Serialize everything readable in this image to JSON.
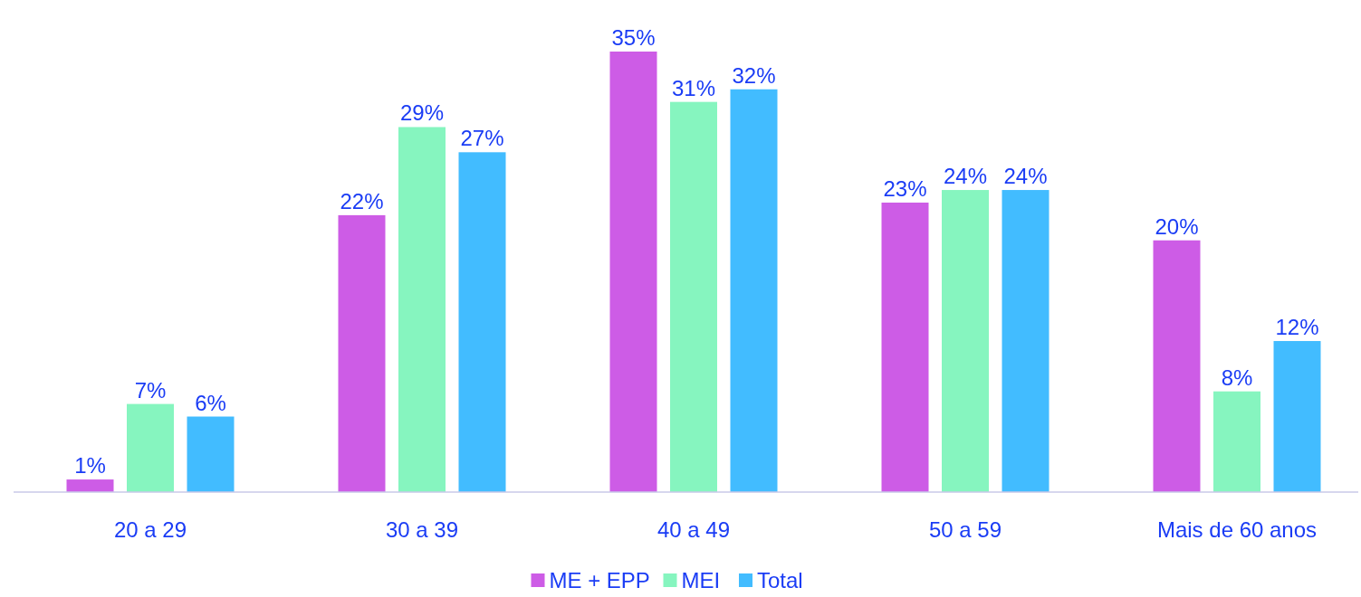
{
  "chart_data": {
    "type": "bar",
    "categories": [
      "20 a 29",
      "30 a 39",
      "40 a 49",
      "50 a 59",
      "Mais de 60 anos"
    ],
    "series": [
      {
        "name": "ME + EPP",
        "color": "#cd5ce6",
        "values": [
          1,
          22,
          35,
          23,
          20
        ],
        "value_labels": [
          "1%",
          "22%",
          "35%",
          "23%",
          "20%"
        ]
      },
      {
        "name": "MEI",
        "color": "#86f5bf",
        "values": [
          7,
          29,
          31,
          24,
          8
        ],
        "value_labels": [
          "7%",
          "29%",
          "31%",
          "24%",
          "8%"
        ]
      },
      {
        "name": "Total",
        "color": "#42bcff",
        "values": [
          6,
          27,
          32,
          24,
          12
        ],
        "value_labels": [
          "6%",
          "27%",
          "32%",
          "24%",
          "12%"
        ]
      }
    ],
    "legend": "bottom"
  }
}
